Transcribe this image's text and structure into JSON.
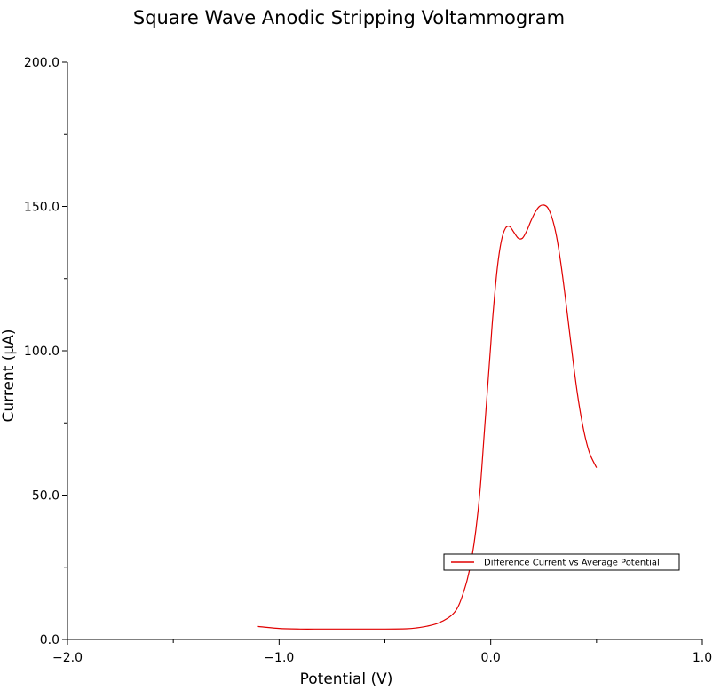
{
  "chart_data": {
    "type": "line",
    "title": "Square Wave Anodic Stripping Voltammogram",
    "xlabel": "Potential (V)",
    "ylabel": "Current (µA)",
    "xlim": [
      -2.0,
      1.0
    ],
    "ylim": [
      0.0,
      200.0
    ],
    "x_ticks": [
      -2.0,
      -1.0,
      0.0,
      1.0
    ],
    "x_tick_labels": [
      "−2.0",
      "−1.0",
      "0.0",
      "1.0"
    ],
    "x_minor_ticks": [
      -1.5,
      -0.5,
      0.5
    ],
    "y_ticks": [
      0.0,
      50.0,
      100.0,
      150.0,
      200.0
    ],
    "y_tick_labels": [
      "0.0",
      "50.0",
      "100.0",
      "150.0",
      "200.0"
    ],
    "y_minor_ticks": [
      25.0,
      75.0,
      125.0,
      175.0
    ],
    "grid": false,
    "legend_position": "lower-right",
    "series": [
      {
        "name": "Difference Current vs Average Potential",
        "color": "#e00000",
        "x": [
          -1.1,
          -1.0,
          -0.9,
          -0.8,
          -0.7,
          -0.6,
          -0.5,
          -0.4,
          -0.35,
          -0.3,
          -0.25,
          -0.2,
          -0.17,
          -0.15,
          -0.13,
          -0.11,
          -0.09,
          -0.07,
          -0.05,
          -0.03,
          -0.01,
          0.0,
          0.01,
          0.03,
          0.05,
          0.07,
          0.09,
          0.11,
          0.13,
          0.15,
          0.17,
          0.19,
          0.21,
          0.23,
          0.25,
          0.27,
          0.29,
          0.31,
          0.33,
          0.35,
          0.37,
          0.39,
          0.41,
          0.43,
          0.45,
          0.47,
          0.5
        ],
        "y": [
          4.5,
          3.8,
          3.6,
          3.6,
          3.6,
          3.6,
          3.6,
          3.7,
          4.0,
          4.6,
          5.6,
          7.5,
          9.5,
          12.0,
          16.0,
          21.0,
          28.0,
          38.0,
          52.0,
          72.0,
          92.0,
          102.0,
          112.0,
          128.0,
          138.0,
          142.5,
          143.0,
          141.0,
          139.0,
          139.0,
          141.5,
          145.0,
          148.0,
          150.0,
          150.5,
          149.5,
          146.0,
          140.0,
          131.0,
          120.0,
          108.0,
          96.0,
          85.0,
          76.0,
          69.0,
          64.0,
          59.5
        ]
      }
    ]
  }
}
